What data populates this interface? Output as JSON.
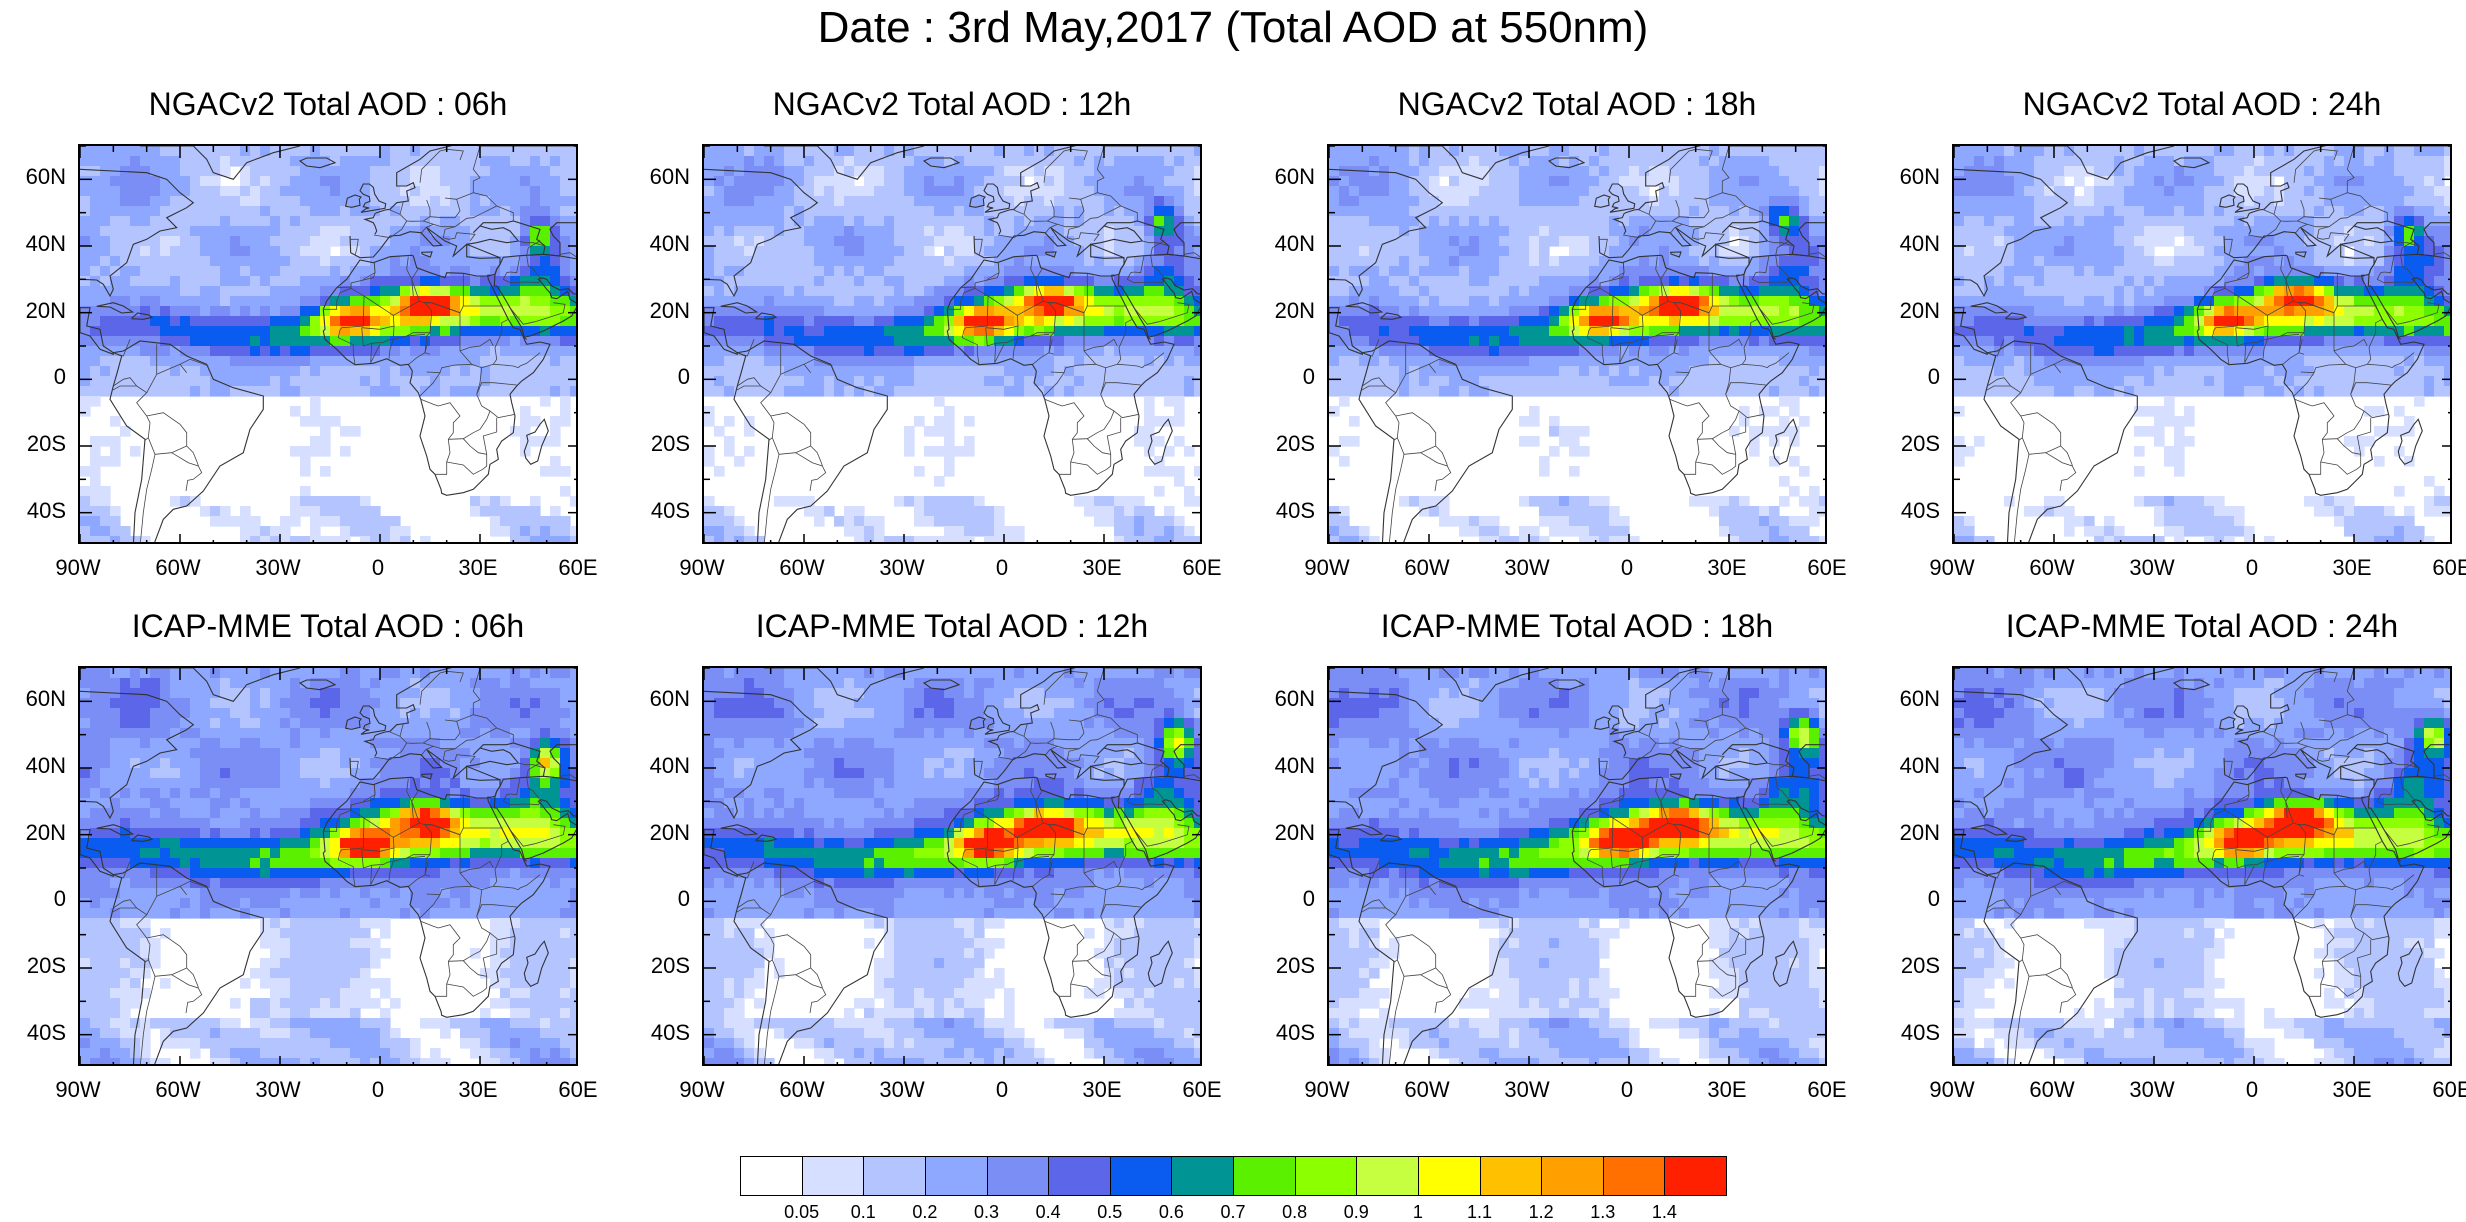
{
  "title": "Date : 3rd May,2017 (Total AOD at 550nm)",
  "panels": [
    {
      "title": "NGACv2 Total AOD : 06h",
      "model": "NGACv2",
      "hour": "06h"
    },
    {
      "title": "NGACv2 Total AOD : 12h",
      "model": "NGACv2",
      "hour": "12h"
    },
    {
      "title": "NGACv2 Total AOD : 18h",
      "model": "NGACv2",
      "hour": "18h"
    },
    {
      "title": "NGACv2 Total AOD : 24h",
      "model": "NGACv2",
      "hour": "24h"
    },
    {
      "title": "ICAP-MME Total AOD : 06h",
      "model": "ICAP-MME",
      "hour": "06h"
    },
    {
      "title": "ICAP-MME Total AOD : 12h",
      "model": "ICAP-MME",
      "hour": "12h"
    },
    {
      "title": "ICAP-MME Total AOD : 18h",
      "model": "ICAP-MME",
      "hour": "18h"
    },
    {
      "title": "ICAP-MME Total AOD : 24h",
      "model": "ICAP-MME",
      "hour": "24h"
    }
  ],
  "axes": {
    "lon_ticks": [
      "90W",
      "60W",
      "30W",
      "0",
      "30E",
      "60E"
    ],
    "lat_ticks": [
      "60N",
      "40N",
      "20N",
      "0",
      "20S",
      "40S"
    ],
    "lon_range": [
      -90,
      60
    ],
    "lat_range": [
      -50,
      70
    ]
  },
  "colorbar": {
    "labels": [
      "0.05",
      "0.1",
      "0.2",
      "0.3",
      "0.4",
      "0.5",
      "0.6",
      "0.7",
      "0.8",
      "0.9",
      "1",
      "1.1",
      "1.2",
      "1.3",
      "1.4"
    ],
    "colors": [
      "#ffffff",
      "#d6dfff",
      "#b4c4ff",
      "#8fa8ff",
      "#7b8ef5",
      "#5c66e8",
      "#0a5cf0",
      "#009494",
      "#5af000",
      "#8cff00",
      "#c6ff40",
      "#ffff00",
      "#ffc000",
      "#ffa000",
      "#ff7000",
      "#ff2000"
    ]
  }
}
